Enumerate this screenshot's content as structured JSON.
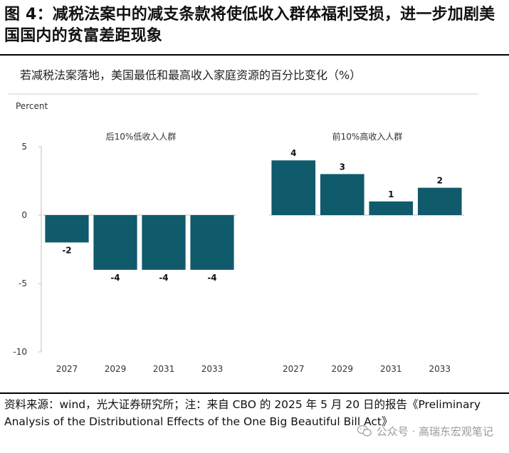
{
  "title": "图 4：减税法案中的减支条款将使低收入群体福利受损，进一步加剧美国国内的贫富差距现象",
  "subtitle": "若减税法案落地，美国最低和最高收入家庭资源的百分比变化（%）",
  "source": "资料来源：wind，光大证券研究所；注：来自 CBO 的 2025 年 5 月 20 日的报告《Preliminary Analysis of the Distributional Effects of the One Big Beautiful Bill Act》",
  "watermark": "公众号 · 高瑞东宏观笔记",
  "colors": {
    "bar": "#0f5a6b",
    "axis": "#bfbfbf",
    "text": "#333333"
  },
  "chart_data": [
    {
      "type": "bar",
      "title": "后10%低收入人群",
      "ylabel": "Percent",
      "categories": [
        "2027",
        "2029",
        "2031",
        "2033"
      ],
      "values": [
        -2,
        -4,
        -4,
        -4
      ],
      "data_labels": [
        "-2",
        "-4",
        "-4",
        "-4"
      ],
      "ylim": [
        -10,
        5
      ],
      "yticks": [
        5,
        0,
        -5,
        -10
      ],
      "ytick_labels": [
        "5",
        "0",
        "-5",
        "-10"
      ],
      "grid": false
    },
    {
      "type": "bar",
      "title": "前10%高收入人群",
      "categories": [
        "2027",
        "2029",
        "2031",
        "2033"
      ],
      "values": [
        4,
        3,
        1,
        2
      ],
      "data_labels": [
        "4",
        "3",
        "1",
        "2"
      ],
      "ylim": [
        -10,
        5
      ],
      "grid": false
    }
  ]
}
